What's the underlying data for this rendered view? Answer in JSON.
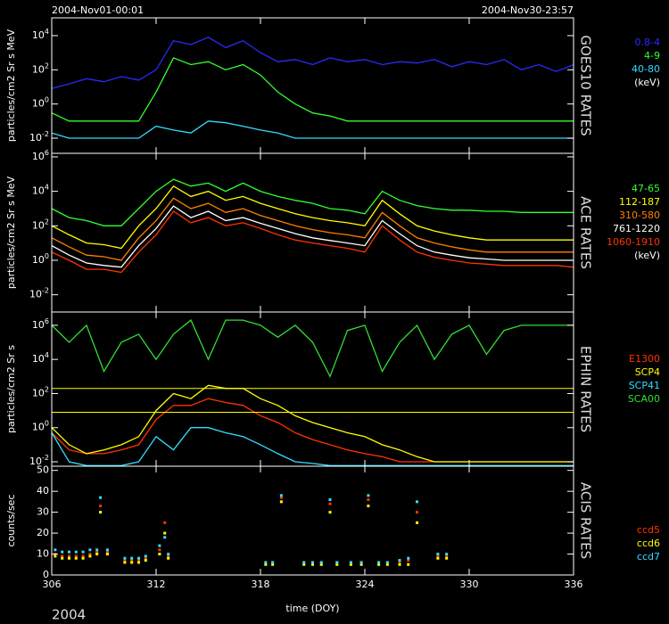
{
  "header": {
    "start": "2004-Nov01-00:01",
    "end": "2004-Nov30-23:57",
    "year": "2004"
  },
  "chart_data": [
    {
      "type": "line",
      "title": "GOES10 RATES",
      "ylabel": "particles/cm2 Sr s MeV",
      "legend_note": "(keV)",
      "log_scale": true,
      "xlim": [
        306,
        336
      ],
      "xticks": [
        306,
        312,
        318,
        324,
        330,
        336
      ],
      "ylim": [
        0.0013,
        110000
      ],
      "yticks": [
        {
          "value": 0.01,
          "label": "10^-2"
        },
        {
          "value": 1,
          "label": "10^0"
        },
        {
          "value": 100,
          "label": "10^2"
        },
        {
          "value": 10000,
          "label": "10^4"
        }
      ],
      "x": [
        306,
        307,
        308,
        309,
        310,
        311,
        312,
        313,
        314,
        315,
        316,
        317,
        318,
        319,
        320,
        321,
        322,
        323,
        324,
        325,
        326,
        327,
        328,
        329,
        330,
        331,
        332,
        333,
        334,
        335,
        336
      ],
      "series": [
        {
          "name": "0.8-4",
          "color": "#2a2aff",
          "values": [
            8,
            15,
            30,
            20,
            40,
            25,
            100,
            5000,
            3000,
            8000,
            2000,
            5000,
            1000,
            300,
            400,
            200,
            500,
            300,
            400,
            200,
            300,
            250,
            400,
            150,
            300,
            200,
            400,
            100,
            200,
            80,
            200
          ]
        },
        {
          "name": "4-9",
          "color": "#33ff33",
          "values": [
            0.3,
            0.1,
            0.1,
            0.1,
            0.1,
            0.1,
            5,
            500,
            200,
            300,
            100,
            200,
            50,
            5,
            1,
            0.3,
            0.2,
            0.1,
            0.1,
            0.1,
            0.1,
            0.1,
            0.1,
            0.1,
            0.1,
            0.1,
            0.1,
            0.1,
            0.1,
            0.1,
            0.1
          ]
        },
        {
          "name": "40-80",
          "color": "#33ddff",
          "values": [
            0.02,
            0.01,
            0.01,
            0.01,
            0.01,
            0.01,
            0.05,
            0.03,
            0.02,
            0.1,
            0.08,
            0.05,
            0.03,
            0.02,
            0.01,
            0.01,
            0.01,
            0.01,
            0.01,
            0.01,
            0.01,
            0.01,
            0.01,
            0.01,
            0.01,
            0.01,
            0.01,
            0.01,
            0.01,
            0.01,
            0.01
          ]
        }
      ]
    },
    {
      "type": "line",
      "title": "ACE RATES",
      "ylabel": "particles/cm2 Sr s MeV",
      "legend_note": "(keV)",
      "log_scale": true,
      "xlim": [
        306,
        336
      ],
      "xticks": [
        306,
        312,
        318,
        324,
        330,
        336
      ],
      "ylim": [
        0.001,
        1600000
      ],
      "yticks": [
        {
          "value": 0.01,
          "label": "10^-2"
        },
        {
          "value": 1,
          "label": "10^0"
        },
        {
          "value": 100,
          "label": "10^2"
        },
        {
          "value": 10000,
          "label": "10^4"
        },
        {
          "value": 1000000,
          "label": "10^6"
        }
      ],
      "x": [
        306,
        307,
        308,
        309,
        310,
        311,
        312,
        313,
        314,
        315,
        316,
        317,
        318,
        319,
        320,
        321,
        322,
        323,
        324,
        325,
        326,
        327,
        328,
        329,
        330,
        331,
        332,
        333,
        334,
        335,
        336
      ],
      "series": [
        {
          "name": "47-65",
          "color": "#33ff33",
          "values": [
            1000,
            300,
            200,
            100,
            100,
            1000,
            10000,
            50000,
            20000,
            30000,
            10000,
            30000,
            10000,
            5000,
            3000,
            2000,
            1000,
            800,
            500,
            10000,
            3000,
            1500,
            1000,
            800,
            800,
            700,
            700,
            600,
            600,
            600,
            600
          ]
        },
        {
          "name": "112-187",
          "color": "#ffff00",
          "values": [
            100,
            30,
            10,
            8,
            5,
            100,
            1000,
            20000,
            5000,
            10000,
            3000,
            5000,
            2000,
            1000,
            500,
            300,
            200,
            150,
            100,
            3000,
            500,
            100,
            50,
            30,
            20,
            15,
            15,
            15,
            15,
            15,
            15
          ]
        },
        {
          "name": "310-580",
          "color": "#ff8000",
          "values": [
            20,
            6,
            2,
            1.6,
            1,
            20,
            200,
            4000,
            1000,
            2000,
            600,
            1000,
            400,
            200,
            100,
            60,
            40,
            30,
            20,
            600,
            100,
            20,
            10,
            6,
            4,
            3,
            3,
            3,
            3,
            3,
            3
          ]
        },
        {
          "name": "761-1220",
          "color": "#ffffff",
          "values": [
            7,
            2,
            0.7,
            0.5,
            0.4,
            7,
            70,
            1400,
            300,
            700,
            200,
            300,
            140,
            70,
            35,
            20,
            14,
            10,
            7,
            200,
            35,
            7,
            3,
            2,
            1.4,
            1.2,
            1,
            1,
            1,
            1,
            1
          ]
        },
        {
          "name": "1060-1910",
          "color": "#ff3300",
          "values": [
            3,
            1,
            0.3,
            0.3,
            0.2,
            3,
            30,
            700,
            150,
            300,
            100,
            150,
            70,
            30,
            15,
            10,
            7,
            5,
            3,
            100,
            15,
            3,
            1.5,
            1,
            0.7,
            0.6,
            0.5,
            0.5,
            0.5,
            0.5,
            0.4
          ]
        }
      ]
    },
    {
      "type": "line",
      "title": "EPHIN RATES",
      "ylabel": "particles/cm2 Sr s",
      "log_scale": true,
      "xlim": [
        306,
        336
      ],
      "xticks": [
        306,
        312,
        318,
        324,
        330,
        336
      ],
      "ylim": [
        0.0055,
        6000000
      ],
      "yticks": [
        {
          "value": 0.01,
          "label": "10^-2"
        },
        {
          "value": 1,
          "label": "10^0"
        },
        {
          "value": 100,
          "label": "10^2"
        },
        {
          "value": 10000,
          "label": "10^4"
        },
        {
          "value": 1000000,
          "label": "10^6"
        }
      ],
      "reference_lines": [
        200,
        8
      ],
      "reference_color": "#ffff00",
      "x": [
        306,
        307,
        308,
        309,
        310,
        311,
        312,
        313,
        314,
        315,
        316,
        317,
        318,
        319,
        320,
        321,
        322,
        323,
        324,
        325,
        326,
        327,
        328,
        329,
        330,
        331,
        332,
        333,
        334,
        335,
        336
      ],
      "series": [
        {
          "name": "E1300",
          "color": "#ff3300",
          "values": [
            0.5,
            0.05,
            0.03,
            0.03,
            0.05,
            0.1,
            3,
            20,
            20,
            50,
            30,
            20,
            5,
            2,
            0.5,
            0.2,
            0.1,
            0.05,
            0.03,
            0.02,
            0.01,
            0.01,
            0.01,
            0.01,
            0.01,
            0.01,
            0.01,
            0.01,
            0.01,
            0.01,
            0.01
          ]
        },
        {
          "name": "SCP4",
          "color": "#ffff00",
          "values": [
            1,
            0.1,
            0.03,
            0.05,
            0.1,
            0.3,
            10,
            100,
            50,
            300,
            200,
            200,
            50,
            20,
            5,
            2,
            1,
            0.5,
            0.3,
            0.1,
            0.05,
            0.02,
            0.01,
            0.01,
            0.01,
            0.01,
            0.01,
            0.01,
            0.01,
            0.01,
            0.01
          ]
        },
        {
          "name": "SCP41",
          "color": "#33ddff",
          "values": [
            0.5,
            0.01,
            0.006,
            0.006,
            0.006,
            0.01,
            0.3,
            0.05,
            1,
            1,
            0.5,
            0.3,
            0.1,
            0.03,
            0.01,
            0.008,
            0.006,
            0.006,
            0.006,
            0.006,
            0.006,
            0.006,
            0.006,
            0.006,
            0.006,
            0.006,
            0.006,
            0.006,
            0.006,
            0.006,
            0.006
          ]
        },
        {
          "name": "SCA00",
          "color": "#33dd33",
          "values": [
            1000000,
            100000,
            1000000,
            2000,
            100000,
            300000,
            10000,
            300000,
            2000000,
            10000,
            2000000,
            2000000,
            1000000,
            200000,
            1000000,
            100000,
            1000,
            500000,
            1000000,
            2000,
            100000,
            1000000,
            10000,
            300000,
            1000000,
            20000,
            500000,
            1000000,
            1000000,
            1000000,
            1000000
          ]
        }
      ]
    },
    {
      "type": "scatter",
      "title": "ACIS RATES",
      "ylabel": "counts/sec",
      "xlabel": "time (DOY)",
      "log_scale": false,
      "xlim": [
        306,
        336
      ],
      "xticks": [
        306,
        312,
        318,
        324,
        330,
        336
      ],
      "ylim": [
        0,
        52
      ],
      "yticks": [
        0,
        10,
        20,
        30,
        40,
        50
      ],
      "x": [
        306.2,
        306.6,
        307.0,
        307.4,
        307.8,
        308.2,
        308.6,
        308.8,
        309.2,
        310.2,
        310.6,
        311.0,
        311.4,
        312.2,
        312.5,
        312.7,
        318.3,
        318.7,
        319.2,
        320.5,
        321.0,
        321.5,
        322.0,
        322.4,
        323.2,
        323.8,
        324.2,
        324.8,
        325.3,
        326.0,
        326.5,
        327.0,
        328.2,
        328.7
      ],
      "series": [
        {
          "name": "ccd5",
          "color": "#ff3300",
          "values": [
            10,
            9,
            9,
            9,
            9,
            10,
            11,
            33,
            11,
            7,
            7,
            7,
            8,
            12,
            25,
            9,
            6,
            6,
            37,
            6,
            6,
            6,
            34,
            6,
            6,
            6,
            36,
            6,
            6,
            6,
            7,
            30,
            9,
            9
          ]
        },
        {
          "name": "ccd6",
          "color": "#ffff00",
          "values": [
            9,
            8,
            8,
            8,
            8,
            9,
            10,
            30,
            10,
            6,
            6,
            6,
            7,
            10,
            20,
            8,
            5,
            5,
            35,
            5,
            5,
            5,
            30,
            5,
            5,
            5,
            33,
            5,
            5,
            5,
            5,
            25,
            8,
            8
          ]
        },
        {
          "name": "ccd7",
          "color": "#33ddff",
          "values": [
            12,
            11,
            11,
            11,
            11,
            12,
            12,
            37,
            12,
            8,
            8,
            8,
            9,
            14,
            18,
            10,
            6,
            6,
            38,
            6,
            6,
            6,
            36,
            6,
            6,
            6,
            38,
            6,
            6,
            7,
            8,
            35,
            10,
            10
          ]
        }
      ]
    }
  ]
}
